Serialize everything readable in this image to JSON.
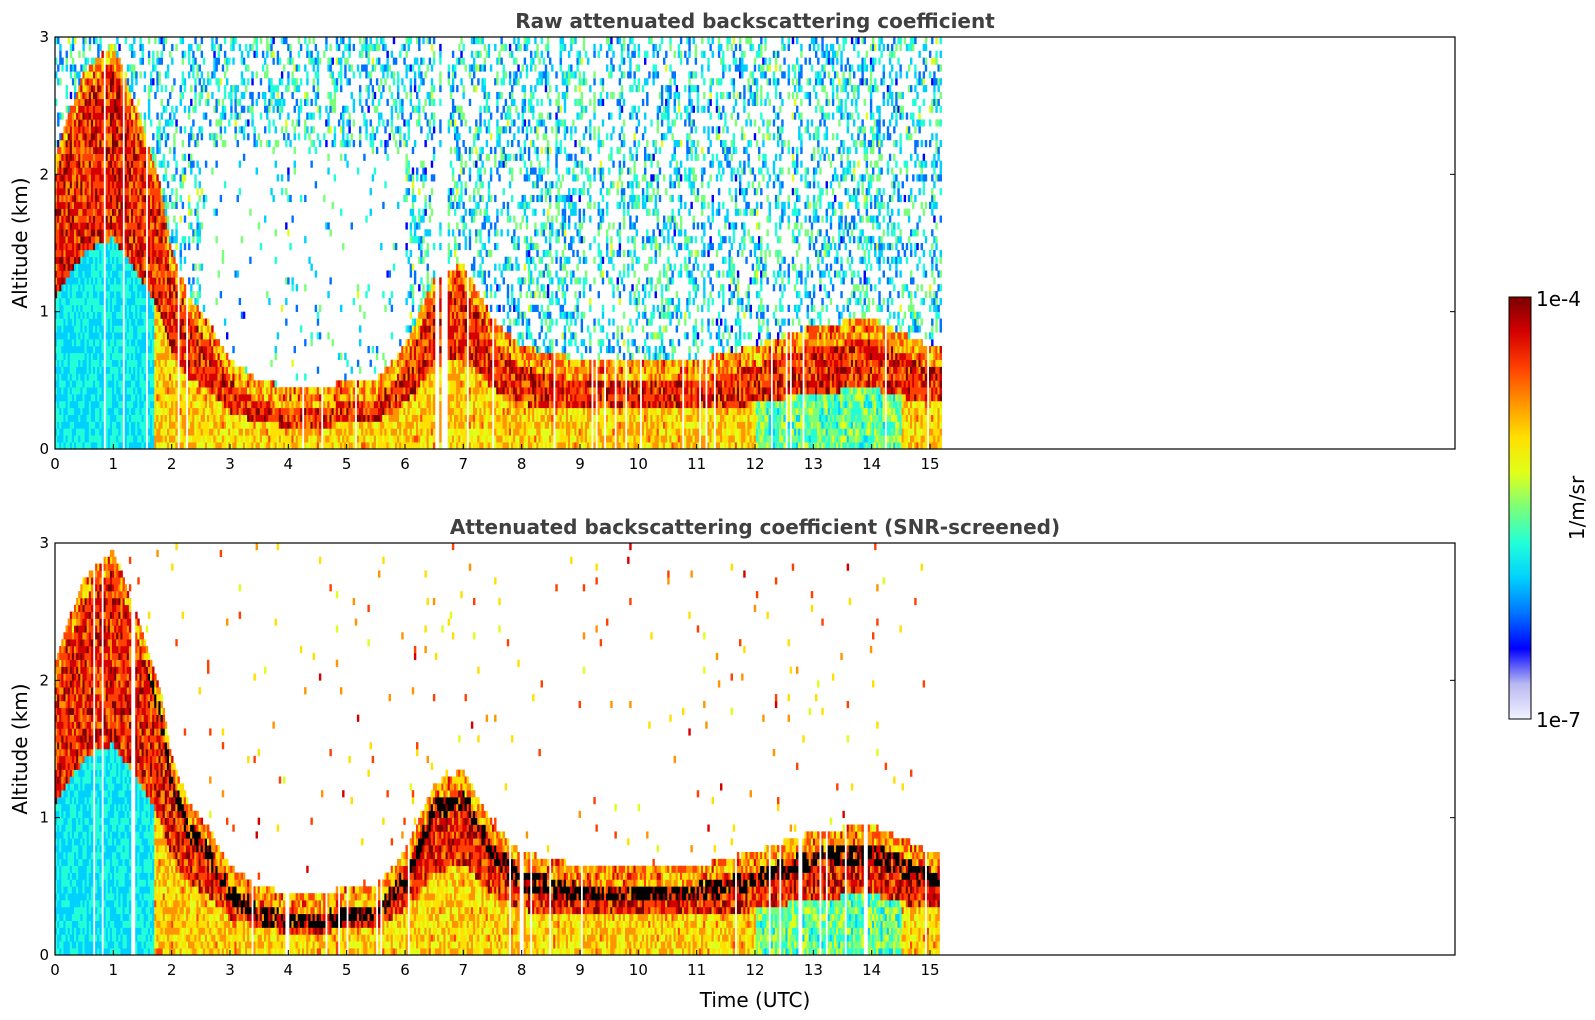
{
  "colors": {
    "colormap": [
      "#f2f2ff",
      "#b8b8f2",
      "#0000ff",
      "#0072ff",
      "#00d0ff",
      "#22ffd8",
      "#7aff7a",
      "#e0ff1a",
      "#ffe000",
      "#ff9400",
      "#ff4000",
      "#d40000",
      "#7a0000"
    ],
    "frame": "#000000",
    "title": "#404040"
  },
  "chart_data": [
    {
      "type": "heatmap",
      "title": "Raw attenuated backscattering coefficient",
      "xlabel": "",
      "ylabel": "Altitude (km)",
      "xlim": [
        0,
        24
      ],
      "ylim": [
        0,
        3
      ],
      "xticks": [
        0,
        1,
        2,
        3,
        4,
        5,
        6,
        7,
        8,
        9,
        10,
        11,
        12,
        13,
        14,
        15
      ],
      "yticks": [
        0,
        1,
        2,
        3
      ],
      "data_extent_hours": [
        0,
        15.2
      ],
      "boundary_layer_top_km": [
        [
          0,
          2.0
        ],
        [
          0.5,
          2.6
        ],
        [
          1,
          2.8
        ],
        [
          1.5,
          2.2
        ],
        [
          1.8,
          1.8
        ],
        [
          2,
          1.3
        ],
        [
          2.3,
          0.95
        ],
        [
          2.6,
          0.8
        ],
        [
          3,
          0.5
        ],
        [
          3.5,
          0.35
        ],
        [
          4,
          0.3
        ],
        [
          4.6,
          0.3
        ],
        [
          5,
          0.35
        ],
        [
          5.5,
          0.35
        ],
        [
          6,
          0.6
        ],
        [
          6.5,
          1.1
        ],
        [
          7,
          1.2
        ],
        [
          7.5,
          0.8
        ],
        [
          8,
          0.6
        ],
        [
          9,
          0.5
        ],
        [
          10,
          0.5
        ],
        [
          11,
          0.5
        ],
        [
          12,
          0.6
        ],
        [
          13,
          0.75
        ],
        [
          14,
          0.8
        ],
        [
          15,
          0.6
        ],
        [
          15.2,
          0.6
        ]
      ],
      "screened": false
    },
    {
      "type": "heatmap",
      "title": "Attenuated backscattering coefficient (SNR-screened)",
      "xlabel": "Time (UTC)",
      "ylabel": "Altitude (km)",
      "xlim": [
        0,
        24
      ],
      "ylim": [
        0,
        3
      ],
      "xticks": [
        0,
        1,
        2,
        3,
        4,
        5,
        6,
        7,
        8,
        9,
        10,
        11,
        12,
        13,
        14,
        15
      ],
      "yticks": [
        0,
        1,
        2,
        3
      ],
      "data_extent_hours": [
        0,
        15.2
      ],
      "boundary_layer_top_km": [
        [
          0,
          2.0
        ],
        [
          0.5,
          2.6
        ],
        [
          1,
          2.8
        ],
        [
          1.5,
          2.2
        ],
        [
          1.8,
          1.8
        ],
        [
          2,
          1.3
        ],
        [
          2.3,
          0.95
        ],
        [
          2.6,
          0.8
        ],
        [
          3,
          0.5
        ],
        [
          3.5,
          0.35
        ],
        [
          4,
          0.3
        ],
        [
          4.6,
          0.3
        ],
        [
          5,
          0.35
        ],
        [
          5.5,
          0.35
        ],
        [
          6,
          0.6
        ],
        [
          6.5,
          1.1
        ],
        [
          7,
          1.2
        ],
        [
          7.5,
          0.8
        ],
        [
          8,
          0.6
        ],
        [
          9,
          0.5
        ],
        [
          10,
          0.5
        ],
        [
          11,
          0.5
        ],
        [
          12,
          0.6
        ],
        [
          13,
          0.75
        ],
        [
          14,
          0.8
        ],
        [
          15,
          0.6
        ],
        [
          15.2,
          0.6
        ]
      ],
      "screened": true
    }
  ],
  "colorbar": {
    "label": "1/m/sr",
    "max_label": "1e-4",
    "min_label": "1e-7",
    "scale": "log",
    "range": [
      1e-07,
      0.0001
    ]
  }
}
